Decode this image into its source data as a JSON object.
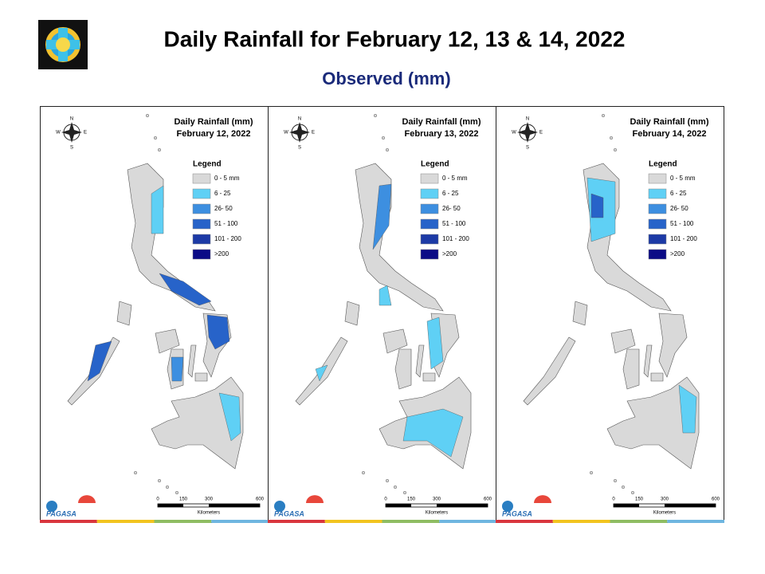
{
  "header": {
    "title": "Daily Rainfall for February 12, 13 & 14, 2022",
    "subtitle": "Observed (mm)"
  },
  "legend_title": "Legend",
  "legend_items": [
    {
      "label": "0 - 5 mm",
      "color": "#d9d9d9"
    },
    {
      "label": "6 - 25",
      "color": "#5fd0f5"
    },
    {
      "label": "26- 50",
      "color": "#3d8fe0"
    },
    {
      "label": "51 - 100",
      "color": "#2763c9"
    },
    {
      "label": "101 - 200",
      "color": "#1c3aa6"
    },
    {
      "label": ">200",
      "color": "#0b0b86"
    }
  ],
  "panels": [
    {
      "title": "Daily Rainfall (mm)",
      "date": "February 12, 2022"
    },
    {
      "title": "Daily Rainfall (mm)",
      "date": "February 13, 2022"
    },
    {
      "title": "Daily Rainfall (mm)",
      "date": "February 14, 2022"
    }
  ],
  "compass": {
    "north": "N",
    "south": "S",
    "east": "E",
    "west": "W"
  },
  "scale_bar": {
    "ticks": [
      "0",
      "150",
      "300",
      "600"
    ],
    "unit": "Kilometers"
  },
  "logo": {
    "agency": "PAGASA"
  }
}
